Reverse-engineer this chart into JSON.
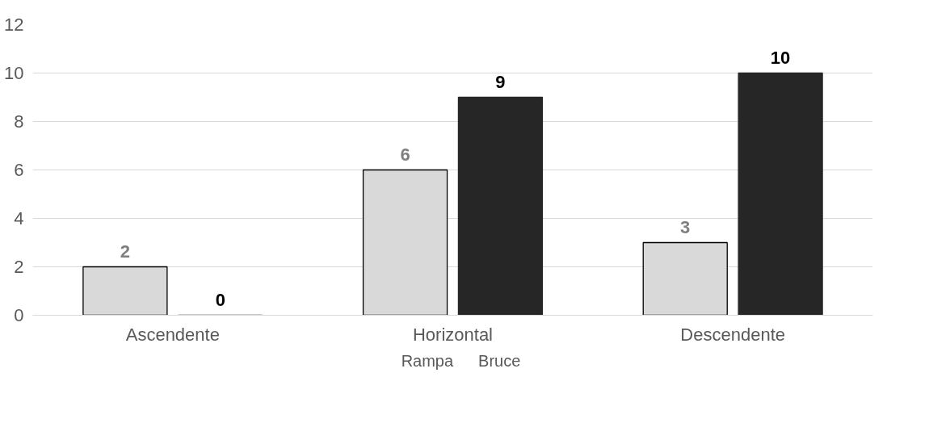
{
  "chart_data": {
    "type": "bar",
    "categories": [
      "Ascendente",
      "Horizontal",
      "Descendente"
    ],
    "series": [
      {
        "name": "Rampa",
        "color": "#d9d9d9",
        "values": [
          2,
          6,
          3
        ]
      },
      {
        "name": "Bruce",
        "color": "#262626",
        "values": [
          0,
          9,
          10
        ]
      }
    ],
    "ylim": [
      0,
      12
    ],
    "yticks": [
      0,
      2,
      4,
      6,
      8,
      10,
      12
    ],
    "grid": "y",
    "legend": "bottom",
    "data_labels": true
  }
}
